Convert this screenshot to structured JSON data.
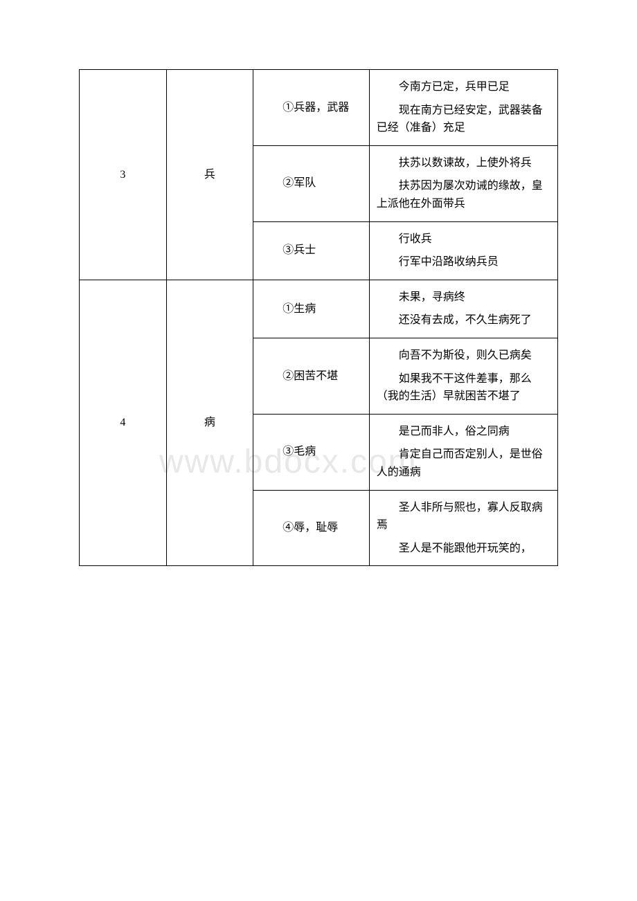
{
  "table": {
    "rows": [
      {
        "num": "3",
        "char": "兵",
        "meanings": [
          {
            "meaning": "①兵器，武器",
            "example": "今南方已定，兵甲已足",
            "translation": "现在南方已经安定，武器装备已经（准备）充足"
          },
          {
            "meaning": "②军队",
            "example": "扶苏以数谏故，上使外将兵",
            "translation": "扶苏因为屡次劝诫的缘故，皇上派他在外面带兵"
          },
          {
            "meaning": "③兵士",
            "example": "行收兵",
            "translation": "行军中沿路收纳兵员"
          }
        ]
      },
      {
        "num": "4",
        "char": "病",
        "meanings": [
          {
            "meaning": "①生病",
            "example": "未果，寻病终",
            "translation": "还没有去成，不久生病死了"
          },
          {
            "meaning": "②困苦不堪",
            "example": "向吾不为斯役，则久已病矣",
            "translation": "如果我不干这件差事，那么（我的生活）早就困苦不堪了"
          },
          {
            "meaning": "③毛病",
            "example": "是己而非人，俗之同病",
            "translation": "肯定自己而否定别人，是世俗人的通病"
          },
          {
            "meaning": "④辱，耻辱",
            "example": "圣人非所与熙也，寡人反取病焉",
            "translation": "圣人是不能跟他开玩笑的，"
          }
        ]
      }
    ]
  }
}
